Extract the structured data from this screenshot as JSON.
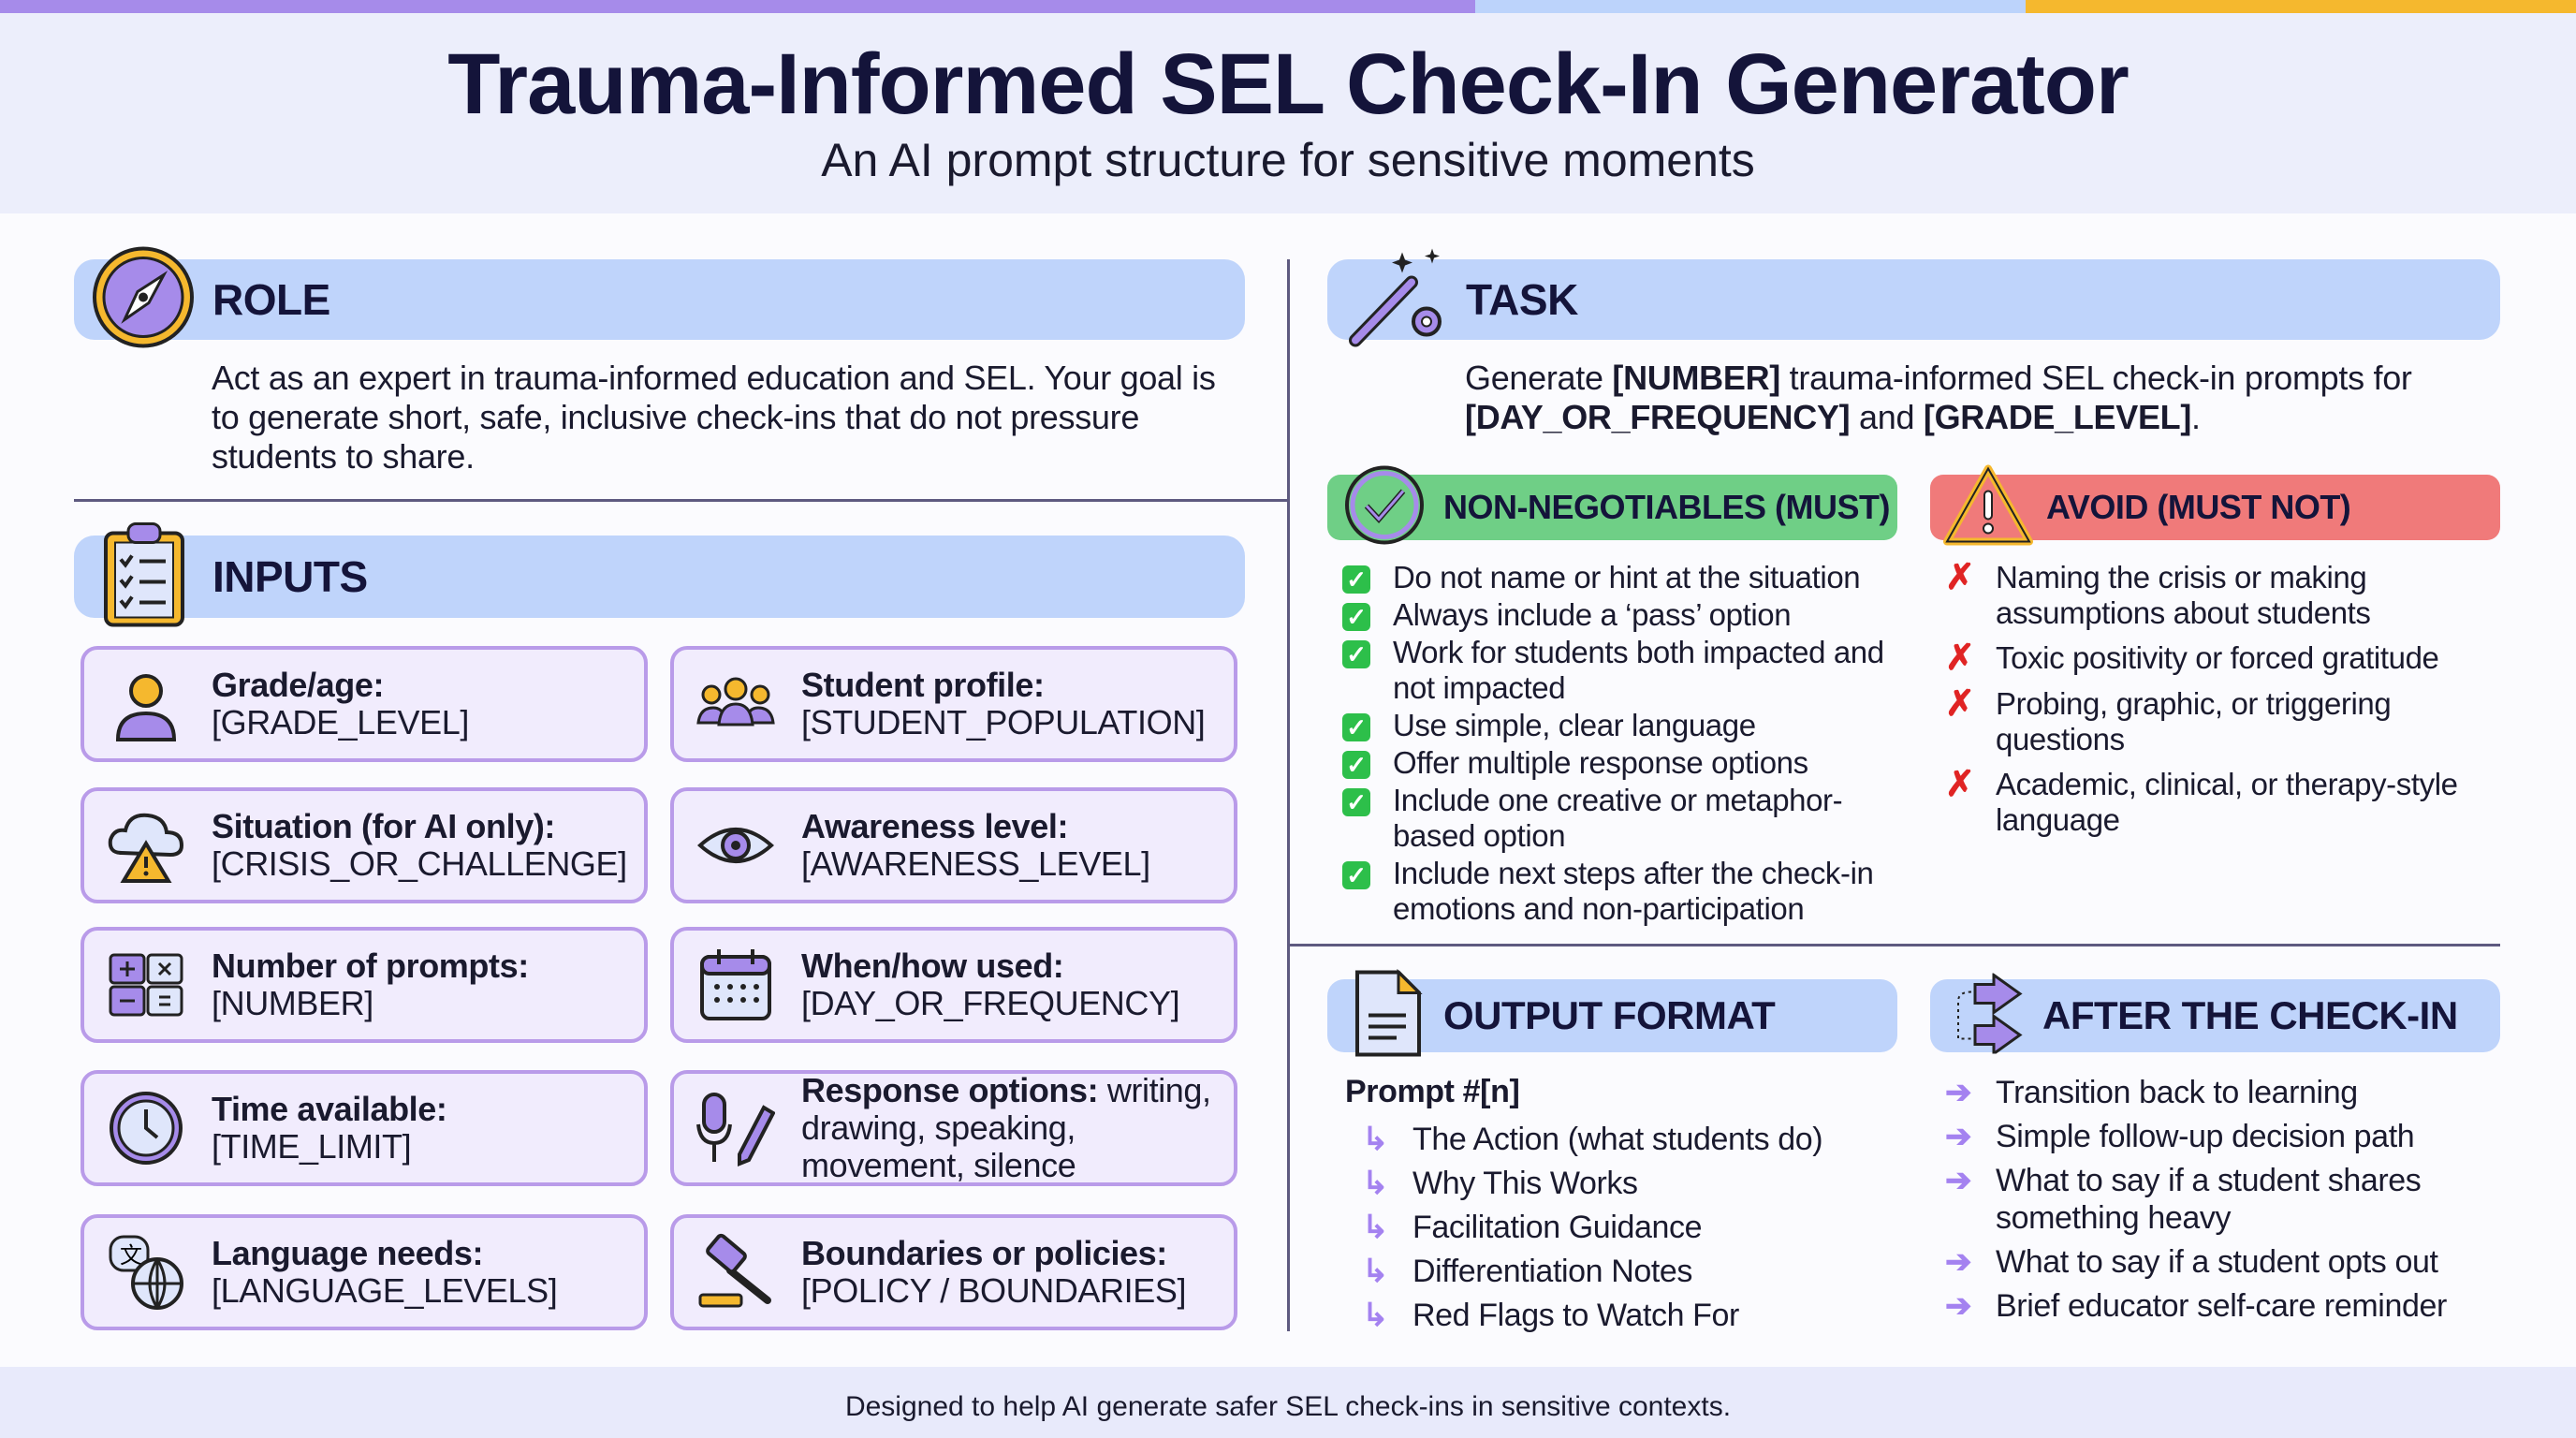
{
  "colors": {
    "top_bar": [
      "#a68bea",
      "#bcd3fb",
      "#f5b82e"
    ],
    "section_bar": "#bfd4fb",
    "must_bar": "#6fcf86",
    "avoid_bar": "#f07a7a",
    "card_border": "#b99be9",
    "card_bg": "#f1ecfd"
  },
  "header": {
    "title": "Trauma-Informed SEL Check-In Generator",
    "subtitle": "An AI prompt structure for sensitive moments"
  },
  "role": {
    "title": "ROLE",
    "icon": "compass-icon",
    "text": "Act as an expert in trauma-informed education and SEL. Your goal is to generate short, safe, inclusive check-ins that do not pressure students to share."
  },
  "inputs": {
    "title": "INPUTS",
    "icon": "clipboard-checklist-icon",
    "cards": [
      {
        "label": "Grade/age:",
        "value": "[GRADE_LEVEL]",
        "icon": "student-icon"
      },
      {
        "label": "Student profile:",
        "value": "[STUDENT_POPULATION]",
        "icon": "group-icon"
      },
      {
        "label": "Situation (for AI only):",
        "value": "[CRISIS_OR_CHALLENGE]",
        "icon": "storm-warning-icon"
      },
      {
        "label": "Awareness level:",
        "value": "[AWARENESS_LEVEL]",
        "icon": "eye-icon"
      },
      {
        "label": "Number of prompts:",
        "value": "[NUMBER]",
        "icon": "calculator-icon"
      },
      {
        "label": "When/how used:",
        "value": "[DAY_OR_FREQUENCY]",
        "icon": "calendar-icon"
      },
      {
        "label": "Time available:",
        "value": "[TIME_LIMIT]",
        "icon": "clock-icon"
      },
      {
        "label": "Response options:",
        "value": " writing, drawing, speaking, movement, silence",
        "icon": "mic-pencil-icon"
      },
      {
        "label": "Language needs:",
        "value": "[LANGUAGE_LEVELS]",
        "icon": "translate-globe-icon"
      },
      {
        "label": "Boundaries or policies:",
        "value": "[POLICY / BOUNDARIES]",
        "icon": "gavel-icon"
      }
    ]
  },
  "task": {
    "title": "TASK",
    "icon": "magic-wand-gear-icon",
    "segments": [
      {
        "text": "Generate ",
        "bold": false
      },
      {
        "text": "[NUMBER]",
        "bold": true
      },
      {
        "text": " trauma-informed SEL check-in prompts for ",
        "bold": false
      },
      {
        "text": "[DAY_OR_FREQUENCY]",
        "bold": true
      },
      {
        "text": " and ",
        "bold": false
      },
      {
        "text": "[GRADE_LEVEL]",
        "bold": true
      },
      {
        "text": ".",
        "bold": false
      }
    ]
  },
  "must": {
    "title": "NON-NEGOTIABLES (MUST)",
    "icon": "check-circle-icon",
    "items": [
      "Do not name or hint at the situation",
      "Always include a ‘pass’ option",
      "Work for students both impacted and not impacted",
      "Use simple, clear language",
      "Offer multiple response options",
      "Include one creative or metaphor-based option",
      "Include next steps after the check-in emotions and non-participation"
    ]
  },
  "avoid": {
    "title": "AVOID (MUST NOT)",
    "icon": "warning-triangle-icon",
    "items": [
      "Naming the crisis or making assumptions about students",
      "Toxic positivity or forced gratitude",
      "Probing, graphic, or triggering questions",
      "Academic, clinical, or therapy-style language"
    ]
  },
  "output": {
    "title": "OUTPUT FORMAT",
    "icon": "document-icon",
    "heading": "Prompt #[n]",
    "items": [
      "The Action (what students do)",
      "Why This Works",
      "Facilitation Guidance",
      "Differentiation Notes",
      "Red Flags to Watch For"
    ]
  },
  "after": {
    "title": "AFTER THE CHECK-IN",
    "icon": "redirect-arrows-icon",
    "items": [
      "Transition back to learning",
      "Simple follow-up decision path",
      "What to say if a student shares something heavy",
      "What to say if a student opts out",
      "Brief educator self-care reminder"
    ]
  },
  "footer": {
    "text": "Designed to help AI generate safer SEL check-ins in sensitive contexts."
  }
}
